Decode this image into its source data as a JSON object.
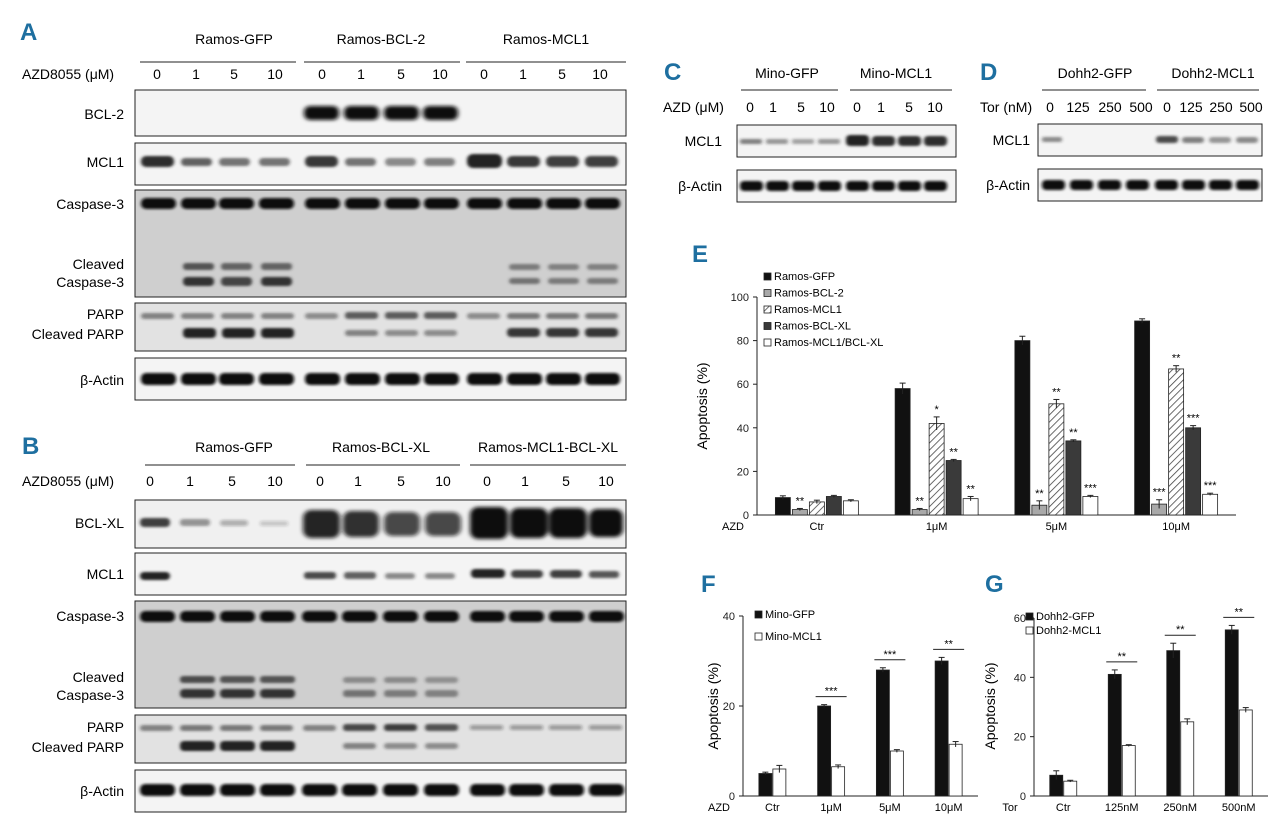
{
  "panels": {
    "A": {
      "letter": "A",
      "groups": [
        "Ramos-GFP",
        "Ramos-BCL-2",
        "Ramos-MCL1"
      ],
      "dose_label": "AZD8055 (μM)",
      "doses": [
        "0",
        "1",
        "5",
        "10",
        "0",
        "1",
        "5",
        "10",
        "0",
        "1",
        "5",
        "10"
      ],
      "blots": [
        {
          "label": [
            "BCL-2"
          ]
        },
        {
          "label": [
            "MCL1"
          ]
        },
        {
          "label": [
            "Caspase-3",
            "Cleaved",
            "Caspase-3"
          ]
        },
        {
          "label": [
            "PARP",
            "Cleaved PARP"
          ]
        },
        {
          "label": [
            "β-Actin"
          ]
        }
      ]
    },
    "B": {
      "letter": "B",
      "groups": [
        "Ramos-GFP",
        "Ramos-BCL-XL",
        "Ramos-MCL1-BCL-XL"
      ],
      "dose_label": "AZD8055 (μM)",
      "doses": [
        "0",
        "1",
        "5",
        "10",
        "0",
        "1",
        "5",
        "10",
        "0",
        "1",
        "5",
        "10"
      ],
      "blots": [
        {
          "label": [
            "BCL-XL"
          ]
        },
        {
          "label": [
            "MCL1"
          ]
        },
        {
          "label": [
            "Caspase-3",
            "Cleaved",
            "Caspase-3"
          ]
        },
        {
          "label": [
            "PARP",
            "Cleaved PARP"
          ]
        },
        {
          "label": [
            "β-Actin"
          ]
        }
      ]
    },
    "C": {
      "letter": "C",
      "groups": [
        "Mino-GFP",
        "Mino-MCL1"
      ],
      "dose_label": "AZD (μM)",
      "doses": [
        "0",
        "1",
        "5",
        "10",
        "0",
        "1",
        "5",
        "10"
      ],
      "blots": [
        {
          "label": [
            "MCL1"
          ]
        },
        {
          "label": [
            "β-Actin"
          ]
        }
      ]
    },
    "D": {
      "letter": "D",
      "groups": [
        "Dohh2-GFP",
        "Dohh2-MCL1"
      ],
      "dose_label": "Tor (nM)",
      "doses": [
        "0",
        "125",
        "250",
        "500",
        "0",
        "125",
        "250",
        "500"
      ],
      "blots": [
        {
          "label": [
            "MCL1"
          ]
        },
        {
          "label": [
            "β-Actin"
          ]
        }
      ]
    }
  },
  "chart_data": [
    {
      "panel": "E",
      "type": "bar",
      "xlabel": "AZD",
      "ylabel": "Apoptosis (%)",
      "ylim": [
        0,
        100
      ],
      "yticks": [
        0,
        20,
        40,
        60,
        80,
        100
      ],
      "categories": [
        "Ctr",
        "1μM",
        "5μM",
        "10μM"
      ],
      "legend_position": "top-left",
      "series": [
        {
          "name": "Ramos-GFP",
          "fill": "#111111",
          "values": [
            8,
            58,
            80,
            89
          ],
          "errors": [
            0.8,
            2.5,
            2,
            1
          ],
          "sig": [
            "",
            "",
            "",
            ""
          ]
        },
        {
          "name": "Ramos-BCL-2",
          "fill": "#a9a9a9",
          "values": [
            2.5,
            2.5,
            4.5,
            5
          ],
          "errors": [
            0.5,
            0.5,
            2,
            2
          ],
          "sig": [
            "**",
            "**",
            "**",
            "***"
          ]
        },
        {
          "name": "Ramos-MCL1",
          "fill": "hatch",
          "values": [
            6,
            42,
            51,
            67
          ],
          "errors": [
            0.8,
            3,
            2,
            1.5
          ],
          "sig": [
            "",
            "*",
            "**",
            "**"
          ]
        },
        {
          "name": "Ramos-BCL-XL",
          "fill": "#3a3a3a",
          "values": [
            8.5,
            25,
            34,
            40
          ],
          "errors": [
            0.5,
            0.5,
            0.5,
            1
          ],
          "sig": [
            "",
            "**",
            "**",
            "***"
          ]
        },
        {
          "name": "Ramos-MCL1/BCL-XL",
          "fill": "#ffffff",
          "values": [
            6.5,
            7.5,
            8.5,
            9.5
          ],
          "errors": [
            0.5,
            1,
            0.5,
            0.5
          ],
          "sig": [
            "",
            "**",
            "***",
            "***"
          ]
        }
      ]
    },
    {
      "panel": "F",
      "type": "bar",
      "xlabel": "AZD",
      "ylabel": "Apoptosis (%)",
      "ylim": [
        0,
        40
      ],
      "yticks": [
        0,
        20,
        40
      ],
      "categories": [
        "Ctr",
        "1μM",
        "5μM",
        "10μM"
      ],
      "legend_position": "top-left",
      "series": [
        {
          "name": "Mino-GFP",
          "fill": "#111111",
          "values": [
            5,
            20,
            28,
            30
          ],
          "errors": [
            0.3,
            0.3,
            0.5,
            0.8
          ]
        },
        {
          "name": "Mino-MCL1",
          "fill": "#ffffff",
          "values": [
            6,
            6.5,
            10,
            11.5
          ],
          "errors": [
            0.8,
            0.4,
            0.3,
            0.6
          ]
        }
      ],
      "significance": [
        "",
        "***",
        "***",
        "**"
      ]
    },
    {
      "panel": "G",
      "type": "bar",
      "xlabel": "Tor",
      "ylabel": "Apoptosis (%)",
      "ylim": [
        0,
        60
      ],
      "yticks": [
        0,
        20,
        40,
        60
      ],
      "categories": [
        "Ctr",
        "125nM",
        "250nM",
        "500nM"
      ],
      "legend_position": "top-left",
      "series": [
        {
          "name": "Dohh2-GFP",
          "fill": "#111111",
          "values": [
            7,
            41,
            49,
            56
          ],
          "errors": [
            1.5,
            1.5,
            2.5,
            1.5
          ]
        },
        {
          "name": "Dohh2-MCL1",
          "fill": "#ffffff",
          "values": [
            5,
            17,
            25,
            29
          ],
          "errors": [
            0.3,
            0.3,
            1,
            0.8
          ]
        }
      ],
      "significance": [
        "",
        "**",
        "**",
        "**"
      ]
    }
  ]
}
